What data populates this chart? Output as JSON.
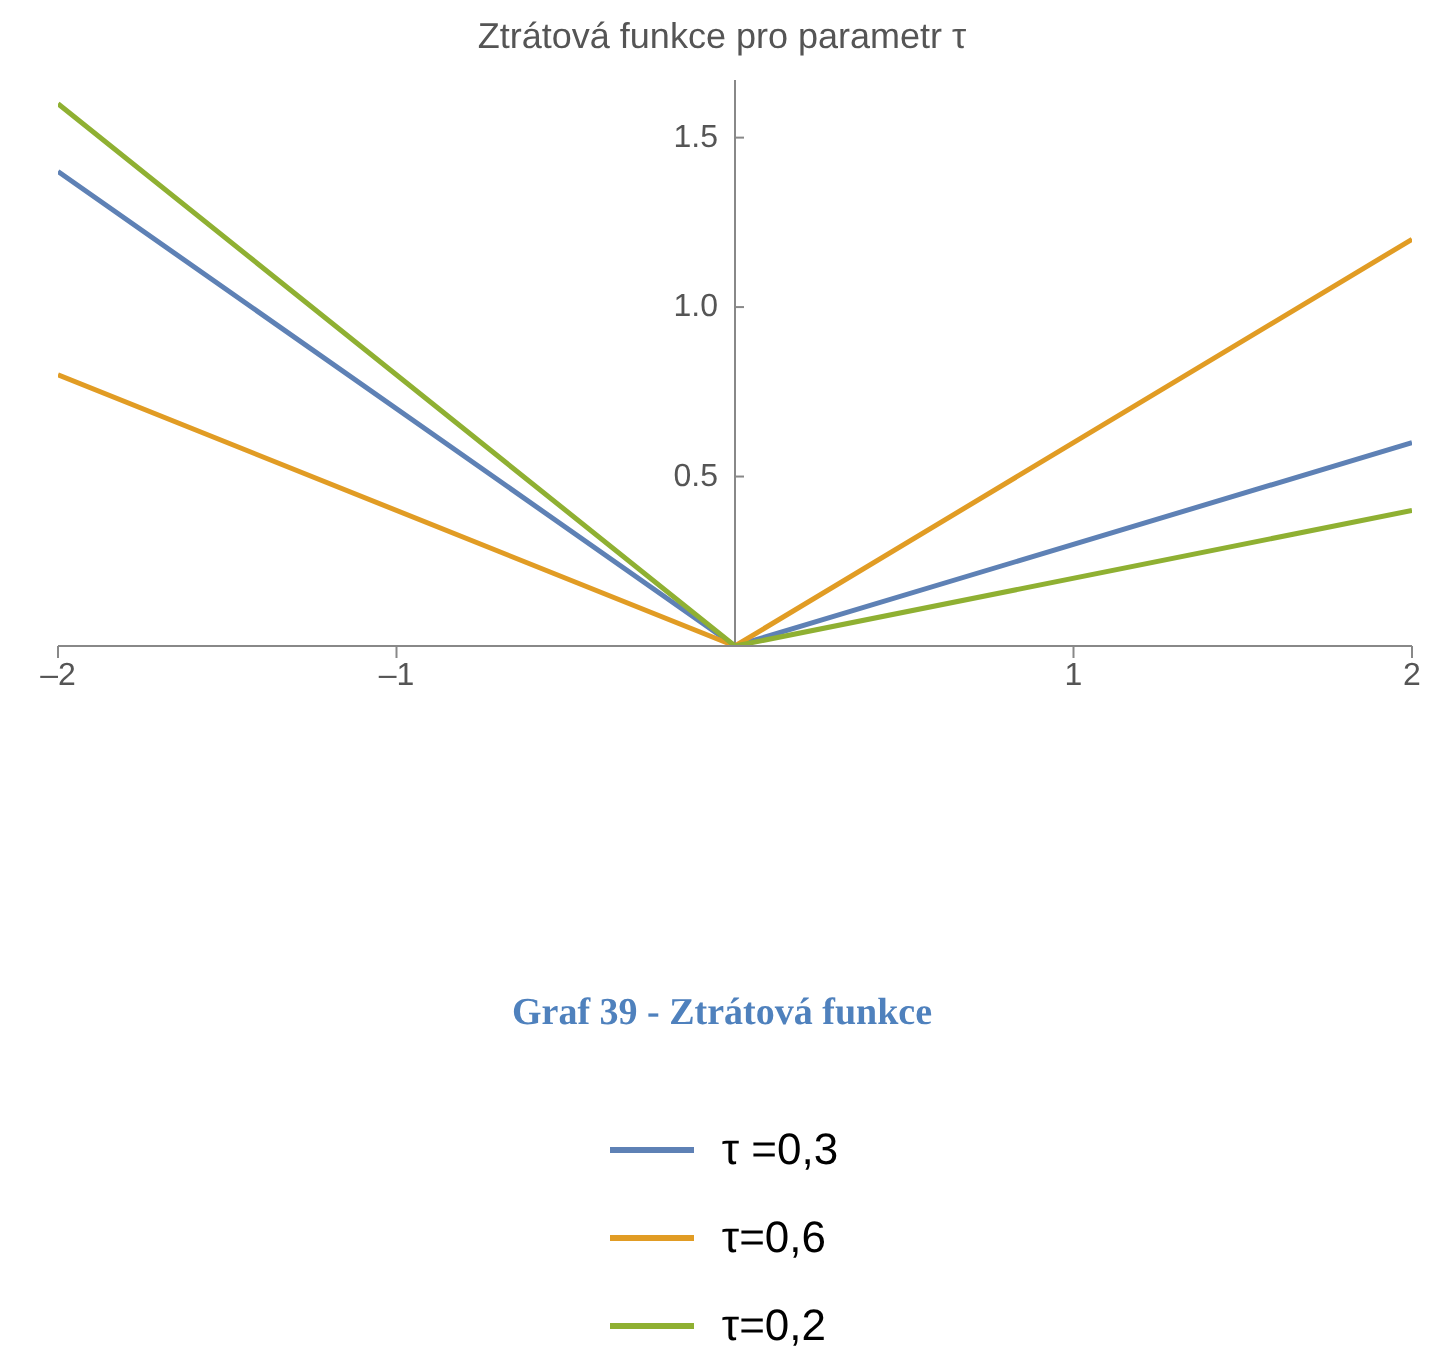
{
  "chart_data": {
    "type": "line",
    "title": "Ztrátová funkce pro parametr τ",
    "annotations": [
      "Graf 39 - Ztrátová funkce"
    ],
    "x": [
      -2,
      0,
      2
    ],
    "series": [
      {
        "name": "τ =0,3",
        "color": "#5e81b5",
        "values": [
          1.4,
          0,
          0.6
        ]
      },
      {
        "name": "τ=0,6",
        "color": "#e19c24",
        "values": [
          0.8,
          0,
          1.2
        ]
      },
      {
        "name": "τ=0,2",
        "color": "#8fb032",
        "values": [
          1.6,
          0,
          0.4
        ]
      }
    ],
    "xlim": [
      -2,
      2
    ],
    "xticks": [
      {
        "value": -2,
        "label": "–2"
      },
      {
        "value": -1,
        "label": "–1"
      },
      1,
      2
    ],
    "ylim": [
      0,
      1.67
    ],
    "yticks": [
      {
        "value": 0.5,
        "label": "0.5"
      },
      {
        "value": 1,
        "label": "1.0"
      },
      {
        "value": 1.5,
        "label": "1.5"
      }
    ],
    "grid": false,
    "legend": "bottom",
    "marker": "none",
    "line_style": "solid"
  }
}
